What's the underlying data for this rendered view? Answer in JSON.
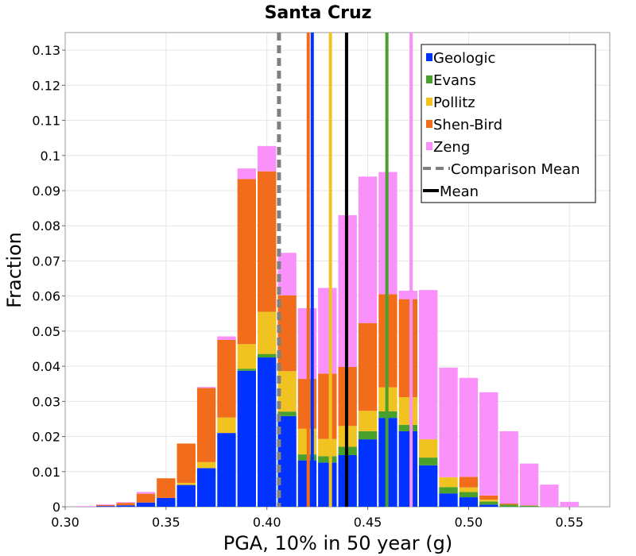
{
  "chart_data": {
    "type": "bar",
    "stacked": true,
    "title": "Santa Cruz",
    "xlabel": "PGA, 10% in 50 year (g)",
    "ylabel": "Fraction",
    "xlim": [
      0.3,
      0.57
    ],
    "ylim": [
      0,
      0.135
    ],
    "bin_width": 0.01,
    "grid": true,
    "legend_position": "top-right",
    "x_ticks": [
      "0.30",
      "0.35",
      "0.40",
      "0.45",
      "0.50",
      "0.55"
    ],
    "x_tick_values": [
      0.3,
      0.35,
      0.4,
      0.45,
      0.5,
      0.55
    ],
    "y_ticks": [
      "0",
      "0.01",
      "0.02",
      "0.03",
      "0.04",
      "0.05",
      "0.06",
      "0.07",
      "0.08",
      "0.09",
      "0.1",
      "0.11",
      "0.12",
      "0.13"
    ],
    "y_tick_values": [
      0,
      0.01,
      0.02,
      0.03,
      0.04,
      0.05,
      0.06,
      0.07,
      0.08,
      0.09,
      0.1,
      0.11,
      0.12,
      0.13
    ],
    "bin_centers": [
      0.31,
      0.32,
      0.33,
      0.34,
      0.35,
      0.36,
      0.37,
      0.38,
      0.39,
      0.4,
      0.41,
      0.42,
      0.43,
      0.44,
      0.45,
      0.46,
      0.47,
      0.48,
      0.49,
      0.5,
      0.51,
      0.52,
      0.53,
      0.54,
      0.55
    ],
    "series": [
      {
        "name": "Geologic",
        "color": "#0033ff",
        "values": [
          0,
          0.0002,
          0.0004,
          0.0012,
          0.0025,
          0.0062,
          0.011,
          0.021,
          0.0387,
          0.0425,
          0.0258,
          0.0132,
          0.0126,
          0.0147,
          0.0192,
          0.0253,
          0.0215,
          0.0118,
          0.0038,
          0.0027,
          0.0006,
          0,
          0,
          0,
          0
        ]
      },
      {
        "name": "Evans",
        "color": "#4aa02c",
        "values": [
          0,
          0,
          0,
          0,
          0,
          0,
          0,
          0,
          0.0006,
          0.001,
          0.0013,
          0.0017,
          0.0018,
          0.0024,
          0.0023,
          0.0019,
          0.0018,
          0.0022,
          0.0018,
          0.0015,
          0.0009,
          0.0006,
          0.0003,
          0,
          0
        ]
      },
      {
        "name": "Pollitz",
        "color": "#f0c320",
        "values": [
          0,
          0,
          0,
          0,
          0,
          0.0006,
          0.0017,
          0.0044,
          0.007,
          0.012,
          0.0115,
          0.0073,
          0.0049,
          0.0059,
          0.0058,
          0.0068,
          0.0079,
          0.0052,
          0.0028,
          0.0013,
          0.0005,
          0,
          0,
          0,
          0
        ]
      },
      {
        "name": "Shen-Bird",
        "color": "#f26d1b",
        "values": [
          0,
          0.0003,
          0.0007,
          0.0025,
          0.0056,
          0.0112,
          0.0211,
          0.0221,
          0.047,
          0.04,
          0.0216,
          0.0142,
          0.0186,
          0.0168,
          0.025,
          0.0265,
          0.0279,
          0.0,
          0.0,
          0.003,
          0.0012,
          0.0003,
          0.0001,
          0,
          0
        ]
      },
      {
        "name": "Zeng",
        "color": "#fa90fa",
        "values": [
          0.0002,
          0.0002,
          0.0002,
          0.0005,
          0.0,
          0.0,
          0.0003,
          0.001,
          0.003,
          0.0072,
          0.0121,
          0.0201,
          0.0244,
          0.0432,
          0.0417,
          0.0348,
          0.0024,
          0.0425,
          0.0312,
          0.0282,
          0.0294,
          0.0206,
          0.0119,
          0.0063,
          0.0014
        ]
      }
    ],
    "vertical_lines": [
      {
        "series": "Geologic",
        "x": 0.4225,
        "color": "#0033ff",
        "style": "solid"
      },
      {
        "series": "Evans",
        "x": 0.4595,
        "color": "#4aa02c",
        "style": "solid"
      },
      {
        "series": "Pollitz",
        "x": 0.4315,
        "color": "#f0c320",
        "style": "solid"
      },
      {
        "series": "Shen-Bird",
        "x": 0.4205,
        "color": "#f26d1b",
        "style": "solid"
      },
      {
        "series": "Zeng",
        "x": 0.4715,
        "color": "#fa90fa",
        "style": "solid"
      },
      {
        "series": "Comparison Mean",
        "x": 0.406,
        "color": "#808080",
        "style": "dashed"
      },
      {
        "series": "Mean",
        "x": 0.4395,
        "color": "#000000",
        "style": "solid"
      }
    ],
    "legend": [
      {
        "label": "Geologic",
        "color": "#0033ff",
        "marker": "square"
      },
      {
        "label": "Evans",
        "color": "#4aa02c",
        "marker": "square"
      },
      {
        "label": "Pollitz",
        "color": "#f0c320",
        "marker": "square"
      },
      {
        "label": "Shen-Bird",
        "color": "#f26d1b",
        "marker": "square"
      },
      {
        "label": "Zeng",
        "color": "#fa90fa",
        "marker": "square"
      },
      {
        "label": "Comparison Mean",
        "color": "#808080",
        "marker": "dashed-line"
      },
      {
        "label": "Mean",
        "color": "#000000",
        "marker": "line"
      }
    ]
  }
}
